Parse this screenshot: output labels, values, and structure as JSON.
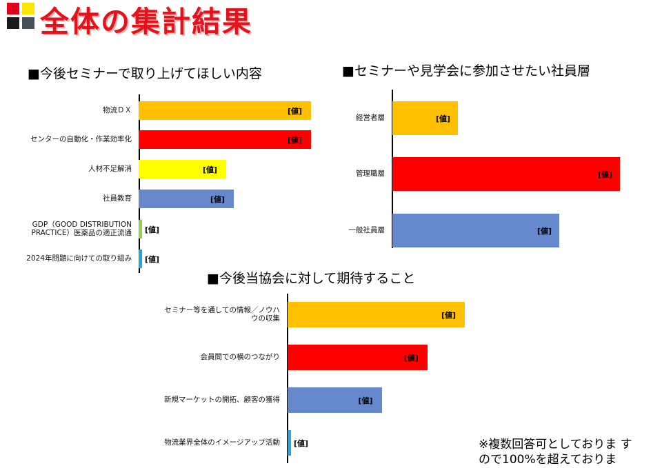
{
  "page_title": "全体の集計結果",
  "colors": {
    "orange": "#FFC000",
    "red": "#FF0000",
    "yellow": "#FFFF00",
    "blue": "#6688CC",
    "green": "#92D050",
    "cyan": "#2BA3D6"
  },
  "chart_data": [
    {
      "type": "bar",
      "orientation": "horizontal",
      "title": "■今後セミナーで取り上げてほしい内容",
      "categories": [
        "物流ＤＸ",
        "センターの自動化・作業効率化",
        "人材不足解消",
        "社員教育",
        "GDP（GOOD DISTRIBUTION PRACTICE）医薬品の適正流通",
        "2024年問題に向けての取り組み"
      ],
      "values": [
        25,
        25,
        12.7,
        13.8,
        0.5,
        0.5
      ],
      "data_labels": [
        "[値]",
        "[値]",
        "[値]",
        "[値]",
        "[値]",
        "[値]"
      ],
      "colors": [
        "#FFC000",
        "#FF0000",
        "#FFFF00",
        "#6688CC",
        "#92D050",
        "#2BA3D6"
      ],
      "xlim": [
        0,
        25
      ]
    },
    {
      "type": "bar",
      "orientation": "horizontal",
      "title": "■セミナーや見学会に参加させたい社員層",
      "categories": [
        "経営者層",
        "管理職層",
        "一般社員層"
      ],
      "values": [
        9.5,
        33,
        24.2
      ],
      "data_labels": [
        "[値]",
        "[値]",
        "[値]"
      ],
      "colors": [
        "#FFC000",
        "#FF0000",
        "#6688CC"
      ],
      "xlim": [
        0,
        33
      ]
    },
    {
      "type": "bar",
      "orientation": "horizontal",
      "title": "■今後当協会に対して期待すること",
      "categories": [
        "セミナー等を通しての情報／ノウハウの収集",
        "会員間での横のつながり",
        "新規マーケットの開拓、顧客の獲得",
        "物流業界全体のイメージアップ活動"
      ],
      "values": [
        25.6,
        20.2,
        13.6,
        0.5
      ],
      "data_labels": [
        "[値]",
        "[値]",
        "[値]",
        "[値]"
      ],
      "colors": [
        "#FFC000",
        "#FF0000",
        "#6688CC",
        "#2BA3D6"
      ],
      "xlim": [
        0,
        25.6
      ]
    }
  ],
  "note": {
    "line1": "※複数回答可としておりま す",
    "line2": "ので100%を超えておりま"
  }
}
